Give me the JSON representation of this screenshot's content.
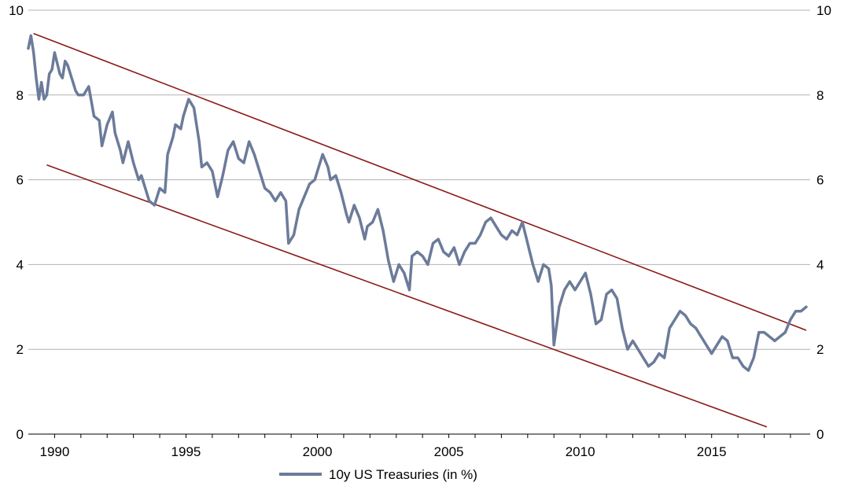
{
  "chart_data": {
    "type": "line",
    "title": "",
    "xlabel": "",
    "ylabel": "",
    "xlim": [
      1989.0,
      2018.75
    ],
    "ylim": [
      0,
      10
    ],
    "x_ticks": [
      "1990",
      "1995",
      "2000",
      "2005",
      "2010",
      "2015"
    ],
    "y_ticks": [
      "0",
      "2",
      "4",
      "6",
      "8",
      "10"
    ],
    "y_ticks_right": [
      "0",
      "2",
      "4",
      "6",
      "8",
      "10"
    ],
    "grid": "horizontal",
    "legend_position": "bottom-center",
    "colors": {
      "series": "#6b7b99",
      "trend": "#8b1a1a",
      "grid": "#b3b3b3",
      "axis": "#000000"
    },
    "series": [
      {
        "name": "10y US Treasuries (in %)",
        "x": [
          1989.0,
          1989.1,
          1989.2,
          1989.3,
          1989.4,
          1989.5,
          1989.6,
          1989.7,
          1989.8,
          1989.9,
          1990.0,
          1990.2,
          1990.3,
          1990.4,
          1990.5,
          1990.7,
          1990.8,
          1990.9,
          1991.1,
          1991.3,
          1991.5,
          1991.7,
          1991.8,
          1992.0,
          1992.2,
          1992.3,
          1992.5,
          1992.6,
          1992.8,
          1993.0,
          1993.2,
          1993.3,
          1993.5,
          1993.6,
          1993.8,
          1994.0,
          1994.2,
          1994.3,
          1994.5,
          1994.6,
          1994.8,
          1994.9,
          1995.1,
          1995.3,
          1995.5,
          1995.6,
          1995.8,
          1996.0,
          1996.2,
          1996.4,
          1996.6,
          1996.8,
          1997.0,
          1997.2,
          1997.4,
          1997.6,
          1997.8,
          1998.0,
          1998.2,
          1998.4,
          1998.6,
          1998.8,
          1998.9,
          1999.1,
          1999.3,
          1999.5,
          1999.7,
          1999.9,
          2000.0,
          2000.2,
          2000.4,
          2000.5,
          2000.7,
          2000.9,
          2001.1,
          2001.2,
          2001.4,
          2001.6,
          2001.8,
          2001.9,
          2002.1,
          2002.3,
          2002.5,
          2002.7,
          2002.9,
          2003.1,
          2003.3,
          2003.5,
          2003.6,
          2003.8,
          2004.0,
          2004.2,
          2004.4,
          2004.6,
          2004.8,
          2005.0,
          2005.2,
          2005.4,
          2005.6,
          2005.8,
          2006.0,
          2006.2,
          2006.4,
          2006.6,
          2006.8,
          2007.0,
          2007.2,
          2007.4,
          2007.6,
          2007.8,
          2008.0,
          2008.2,
          2008.4,
          2008.6,
          2008.8,
          2008.9,
          2009.0,
          2009.2,
          2009.4,
          2009.6,
          2009.8,
          2010.0,
          2010.2,
          2010.4,
          2010.6,
          2010.8,
          2011.0,
          2011.2,
          2011.4,
          2011.6,
          2011.8,
          2012.0,
          2012.2,
          2012.4,
          2012.6,
          2012.8,
          2013.0,
          2013.2,
          2013.4,
          2013.6,
          2013.8,
          2014.0,
          2014.2,
          2014.4,
          2014.6,
          2014.8,
          2015.0,
          2015.2,
          2015.4,
          2015.6,
          2015.8,
          2016.0,
          2016.2,
          2016.4,
          2016.6,
          2016.8,
          2017.0,
          2017.2,
          2017.4,
          2017.6,
          2017.8,
          2018.0,
          2018.2,
          2018.4,
          2018.6
        ],
        "values": [
          9.1,
          9.4,
          9.0,
          8.4,
          7.9,
          8.3,
          7.9,
          8.0,
          8.5,
          8.6,
          9.0,
          8.5,
          8.4,
          8.8,
          8.7,
          8.3,
          8.1,
          8.0,
          8.0,
          8.2,
          7.5,
          7.4,
          6.8,
          7.3,
          7.6,
          7.1,
          6.7,
          6.4,
          6.9,
          6.4,
          6.0,
          6.1,
          5.7,
          5.5,
          5.4,
          5.8,
          5.7,
          6.6,
          7.0,
          7.3,
          7.2,
          7.5,
          7.9,
          7.7,
          6.9,
          6.3,
          6.4,
          6.2,
          5.6,
          6.1,
          6.7,
          6.9,
          6.5,
          6.4,
          6.9,
          6.6,
          6.2,
          5.8,
          5.7,
          5.5,
          5.7,
          5.5,
          4.5,
          4.7,
          5.3,
          5.6,
          5.9,
          6.0,
          6.2,
          6.6,
          6.3,
          6.0,
          6.1,
          5.7,
          5.2,
          5.0,
          5.4,
          5.1,
          4.6,
          4.9,
          5.0,
          5.3,
          4.8,
          4.1,
          3.6,
          4.0,
          3.8,
          3.4,
          4.2,
          4.3,
          4.2,
          4.0,
          4.5,
          4.6,
          4.3,
          4.2,
          4.4,
          4.0,
          4.3,
          4.5,
          4.5,
          4.7,
          5.0,
          5.1,
          4.9,
          4.7,
          4.6,
          4.8,
          4.7,
          5.0,
          4.5,
          4.0,
          3.6,
          4.0,
          3.9,
          3.5,
          2.1,
          3.0,
          3.4,
          3.6,
          3.4,
          3.6,
          3.8,
          3.3,
          2.6,
          2.7,
          3.3,
          3.4,
          3.2,
          2.5,
          2.0,
          2.2,
          2.0,
          1.8,
          1.6,
          1.7,
          1.9,
          1.8,
          2.5,
          2.7,
          2.9,
          2.8,
          2.6,
          2.5,
          2.3,
          2.1,
          1.9,
          2.1,
          2.3,
          2.2,
          1.8,
          1.8,
          1.6,
          1.5,
          1.8,
          2.4,
          2.4,
          2.3,
          2.2,
          2.3,
          2.4,
          2.7,
          2.9,
          2.9,
          3.0
        ]
      }
    ],
    "trend_lines": [
      {
        "name": "upper channel",
        "x": [
          1989.2,
          2018.6
        ],
        "values": [
          9.45,
          2.45
        ]
      },
      {
        "name": "lower channel",
        "x": [
          1989.7,
          2017.1
        ],
        "values": [
          6.35,
          0.17
        ]
      }
    ],
    "legend": {
      "label": "10y US Treasuries (in %)"
    }
  }
}
